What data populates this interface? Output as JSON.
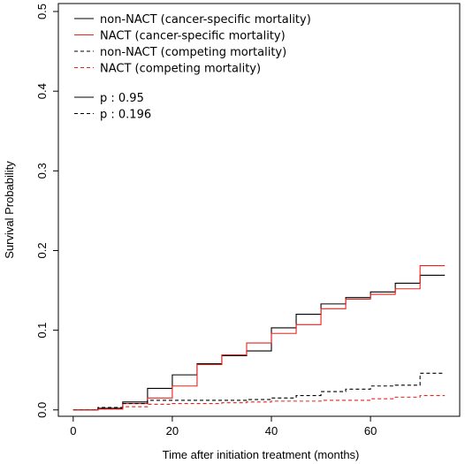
{
  "chart_data": {
    "type": "line",
    "xlabel": "Time after initiation treatment (months)",
    "ylabel": "Survival Probability",
    "xlim": [
      -3,
      78
    ],
    "ylim": [
      -0.008,
      0.51
    ],
    "x_ticks": [
      0,
      20,
      40,
      60
    ],
    "y_ticks": [
      0.0,
      0.1,
      0.2,
      0.3,
      0.4,
      0.5
    ],
    "x_tick_labels": [
      "0",
      "20",
      "40",
      "60"
    ],
    "y_tick_labels": [
      "0.0",
      "0.1",
      "0.2",
      "0.3",
      "0.4",
      "0.5"
    ],
    "step": true,
    "grid": false,
    "legend_position": "top-left",
    "series": [
      {
        "name": "non-NACT (cancer-specific mortality)",
        "color": "#000000",
        "dash": "solid",
        "x": [
          0,
          5,
          10,
          15,
          20,
          25,
          30,
          35,
          40,
          45,
          50,
          55,
          60,
          65,
          70,
          75
        ],
        "y": [
          0,
          0.002,
          0.01,
          0.027,
          0.044,
          0.058,
          0.068,
          0.074,
          0.103,
          0.12,
          0.133,
          0.141,
          0.148,
          0.159,
          0.169,
          0.169
        ]
      },
      {
        "name": "NACT (cancer-specific mortality)",
        "color": "#e8231e",
        "dash": "solid",
        "x": [
          0,
          5,
          10,
          15,
          20,
          25,
          30,
          35,
          40,
          45,
          50,
          55,
          60,
          65,
          70,
          75
        ],
        "y": [
          0,
          0.001,
          0.008,
          0.015,
          0.03,
          0.057,
          0.069,
          0.084,
          0.096,
          0.107,
          0.127,
          0.139,
          0.145,
          0.152,
          0.181,
          0.181
        ]
      },
      {
        "name": "non-NACT (competing mortality)",
        "color": "#000000",
        "dash": "dashed",
        "x": [
          0,
          5,
          10,
          15,
          20,
          25,
          30,
          35,
          40,
          45,
          50,
          55,
          60,
          65,
          70,
          75
        ],
        "y": [
          0,
          0.003,
          0.008,
          0.012,
          0.012,
          0.012,
          0.012,
          0.013,
          0.015,
          0.018,
          0.023,
          0.026,
          0.03,
          0.031,
          0.046,
          0.046
        ]
      },
      {
        "name": "NACT (competing mortality)",
        "color": "#e8231e",
        "dash": "dashed",
        "x": [
          0,
          5,
          10,
          15,
          20,
          25,
          30,
          35,
          40,
          45,
          50,
          55,
          60,
          65,
          70,
          75
        ],
        "y": [
          0,
          0.001,
          0.004,
          0.007,
          0.008,
          0.008,
          0.009,
          0.01,
          0.011,
          0.011,
          0.012,
          0.012,
          0.014,
          0.016,
          0.018,
          0.018
        ]
      }
    ],
    "legend": [
      {
        "label": "non-NACT (cancer-specific mortality)",
        "color": "#000000",
        "dash": "solid"
      },
      {
        "label": "NACT (cancer-specific mortality)",
        "color": "#e8231e",
        "dash": "solid"
      },
      {
        "label": "non-NACT (competing mortality)",
        "color": "#000000",
        "dash": "dashed"
      },
      {
        "label": "NACT (competing mortality)",
        "color": "#e8231e",
        "dash": "dashed"
      }
    ],
    "p_values": [
      {
        "label": "p : 0.95",
        "color": "#000000",
        "dash": "solid"
      },
      {
        "label": "p : 0.196",
        "color": "#000000",
        "dash": "dashed"
      }
    ]
  }
}
